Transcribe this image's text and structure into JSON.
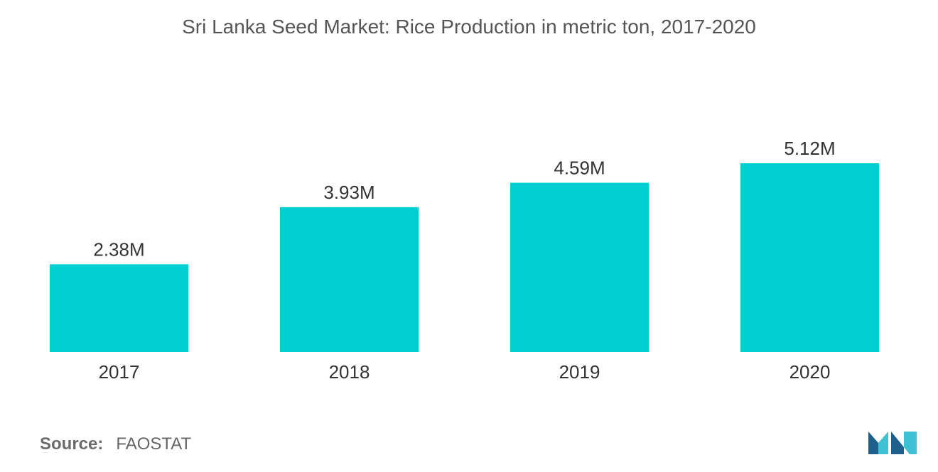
{
  "chart_data": {
    "type": "bar",
    "title": "Sri Lanka Seed Market: Rice Production in metric ton, 2017-2020",
    "categories": [
      "2017",
      "2018",
      "2019",
      "2020"
    ],
    "values": [
      2.38,
      3.93,
      4.59,
      5.12
    ],
    "value_labels": [
      "2.38M",
      "3.93M",
      "4.59M",
      "5.12M"
    ],
    "unit": "M",
    "ylim": [
      0,
      5.8
    ],
    "grid": false,
    "legend": "none",
    "bar_color": "#00CED1"
  },
  "source": {
    "label": "Source:",
    "value": "FAOSTAT"
  },
  "logo": {
    "icon": "mordor-intelligence-logo-icon",
    "color_dark": "#1f5f8b",
    "color_light": "#3ec1d3"
  }
}
